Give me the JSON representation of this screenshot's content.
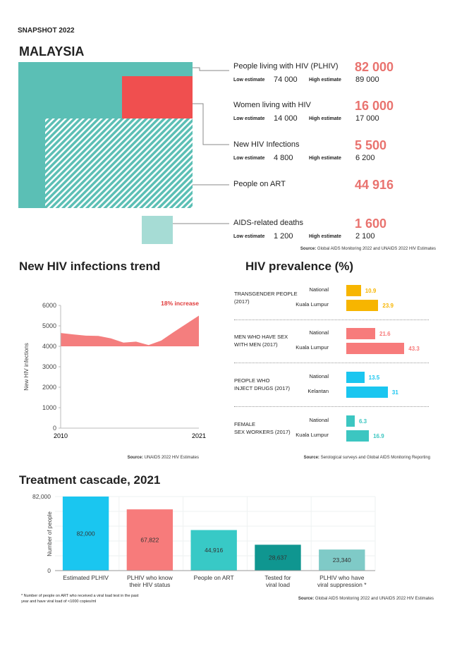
{
  "header": {
    "snapshot": "SNAPSHOT 2022",
    "country": "MALAYSIA"
  },
  "colors": {
    "teal": "#5bbfb5",
    "red": "#f04f4f",
    "light_teal": "#a6dcd5",
    "accent_text": "#e9736f",
    "trend_fill": "#f47e7e",
    "transgender": "#f7b500",
    "msm": "#f77b7b",
    "pwid": "#1ac6f0",
    "fsw": "#3cc6c1"
  },
  "estimates": {
    "low_label": "Low estimate",
    "high_label": "High estimate"
  },
  "indicators": [
    {
      "label": "People living with HIV (PLHIV)",
      "value": "82 000",
      "low": "74 000",
      "high": "89 000"
    },
    {
      "label": "Women living with HIV",
      "value": "16 000",
      "low": "14 000",
      "high": "17 000"
    },
    {
      "label": "New HIV Infections",
      "value": "5 500",
      "low": "4 800",
      "high": "6 200"
    },
    {
      "label": "People on ART",
      "value": "44 916"
    },
    {
      "label": "AIDS-related deaths",
      "value": "1 600",
      "low": "1 200",
      "high": "2 100"
    }
  ],
  "top_source": {
    "prefix": "Source:",
    "text": "Global AIDS Monitoring 2022 and UNAIDS 2022 HIV Estimates"
  },
  "chart_data": [
    {
      "type": "area",
      "title": "New HIV infections trend",
      "ylabel": "New HIV infections",
      "ylim": [
        0,
        6000
      ],
      "yticks": [
        0,
        1000,
        2000,
        3000,
        4000,
        5000,
        6000
      ],
      "xticks": [
        "2010",
        "2021"
      ],
      "x": [
        2010,
        2011,
        2012,
        2013,
        2014,
        2015,
        2016,
        2017,
        2018,
        2019,
        2020,
        2021
      ],
      "values": [
        4650,
        4580,
        4520,
        4510,
        4390,
        4180,
        4230,
        4060,
        4280,
        4700,
        5100,
        5500
      ],
      "annotation": "18% increase",
      "source_prefix": "Source:",
      "source": "UNAIDS 2022 HIV Estimates"
    },
    {
      "type": "bar",
      "orientation": "horizontal",
      "title": "HIV prevalence (%)",
      "source_prefix": "Source:",
      "source": "Serological surveys and Global AIDS Monitoring Reporting",
      "groups": [
        {
          "name": "TRANSGENDER PEOPLE (2017)",
          "lines": [
            "TRANSGENDER PEOPLE",
            "(2017)"
          ],
          "color": "#f7b500",
          "bars": [
            {
              "label": "National",
              "value": 10.9
            },
            {
              "label": "Kuala Lumpur",
              "value": 23.9
            }
          ]
        },
        {
          "name": "MEN WHO HAVE SEX WITH MEN (2017)",
          "lines": [
            "MEN WHO HAVE SEX",
            "WITH  MEN (2017)"
          ],
          "color": "#f77b7b",
          "bars": [
            {
              "label": "National",
              "value": 21.6
            },
            {
              "label": "Kuala Lumpur",
              "value": 43.3
            }
          ]
        },
        {
          "name": "PEOPLE WHO INJECT DRUGS (2017)",
          "lines": [
            "PEOPLE WHO",
            "INJECT DRUGS (2017)"
          ],
          "color": "#1ac6f0",
          "bars": [
            {
              "label": "National",
              "value": 13.5
            },
            {
              "label": "Kelantan",
              "value": 31
            }
          ]
        },
        {
          "name": "FEMALE SEX WORKERS (2017)",
          "lines": [
            "FEMALE",
            "SEX WORKERS (2017)"
          ],
          "color": "#3cc6c1",
          "bars": [
            {
              "label": "National",
              "value": 6.3
            },
            {
              "label": "Kuala Lumpur",
              "value": 16.9
            }
          ]
        }
      ]
    },
    {
      "type": "bar",
      "title": "Treatment cascade, 2021",
      "ylabel": "Number of people",
      "ylim": [
        0,
        82000
      ],
      "yticks": [
        "0",
        "82,000"
      ],
      "categories": [
        [
          "Estimated PLHIV"
        ],
        [
          "PLHIV who know",
          "their HIV status"
        ],
        [
          "People on ART"
        ],
        [
          "Tested for",
          "viral load"
        ],
        [
          "PLHIV who have",
          "viral suppression *"
        ]
      ],
      "values": [
        82000,
        67822,
        44916,
        28637,
        23340
      ],
      "labels": [
        "82,000",
        "67,822",
        "44,916",
        "28,637",
        "23,340"
      ],
      "colors": [
        "#1ac6f0",
        "#f77b7b",
        "#38c9c6",
        "#0f9690",
        "#7fcac7"
      ],
      "footnote": [
        "* Number of people on ART who received a viral load test in the past",
        "year and have viral load of <1000 copies/ml"
      ],
      "source_prefix": "Source:",
      "source": "Global AIDS Monitoring 2022 and UNAIDS 2022 HIV Estimates"
    }
  ]
}
